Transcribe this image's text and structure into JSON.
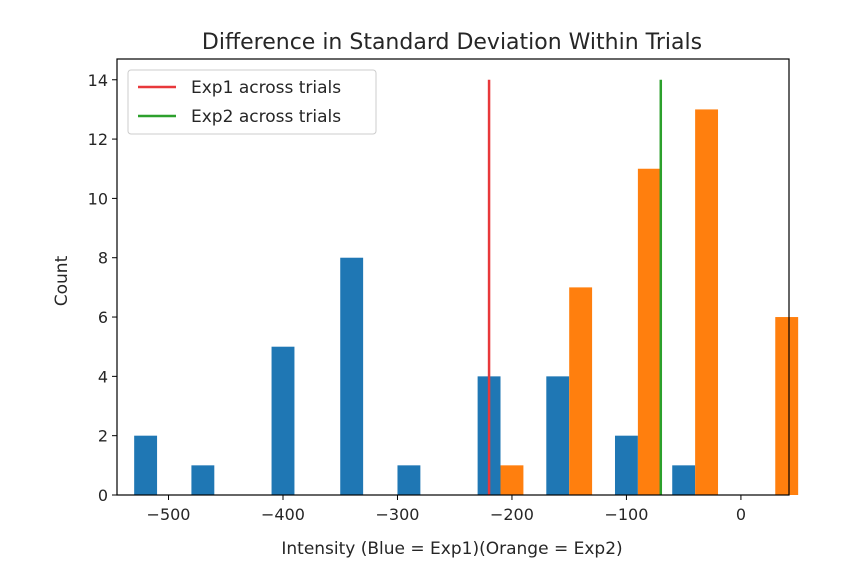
{
  "chart_data": {
    "type": "bar",
    "title": "Difference in Standard Deviation Within Trials",
    "xlabel": "Intensity (Blue = Exp1)(Orange = Exp2)",
    "ylabel": "Count",
    "xlim": [
      -545,
      42
    ],
    "ylim": [
      0,
      14.7
    ],
    "x_ticks": [
      -500,
      -400,
      -300,
      -200,
      -100,
      0
    ],
    "x_tick_labels": [
      "−500",
      "−400",
      "−300",
      "−200",
      "−100",
      "0"
    ],
    "y_ticks": [
      0,
      2,
      4,
      6,
      8,
      10,
      12,
      14
    ],
    "y_tick_labels": [
      "0",
      "2",
      "4",
      "6",
      "8",
      "10",
      "12",
      "14"
    ],
    "grid": false,
    "legend_position": "top-left",
    "bar_width": 20,
    "series": [
      {
        "color": "#1f77b4",
        "bars": [
          {
            "x": -520,
            "count": 2
          },
          {
            "x": -470,
            "count": 1
          },
          {
            "x": -400,
            "count": 5
          },
          {
            "x": -340,
            "count": 8
          },
          {
            "x": -290,
            "count": 1
          },
          {
            "x": -220,
            "count": 4
          },
          {
            "x": -160,
            "count": 4
          },
          {
            "x": -100,
            "count": 2
          },
          {
            "x": -50,
            "count": 1
          }
        ]
      },
      {
        "color": "#ff7f0e",
        "bars": [
          {
            "x": -200,
            "count": 1
          },
          {
            "x": -140,
            "count": 7
          },
          {
            "x": -80,
            "count": 11
          },
          {
            "x": -30,
            "count": 13
          },
          {
            "x": 40,
            "count": 6
          }
        ]
      }
    ],
    "lines": [
      {
        "name": "Exp1 across trials",
        "x": -220,
        "y0": 0,
        "y1": 14,
        "color": "#e8383b"
      },
      {
        "name": "Exp2 across trials",
        "x": -70,
        "y0": 0,
        "y1": 14,
        "color": "#2ca02c"
      }
    ]
  }
}
